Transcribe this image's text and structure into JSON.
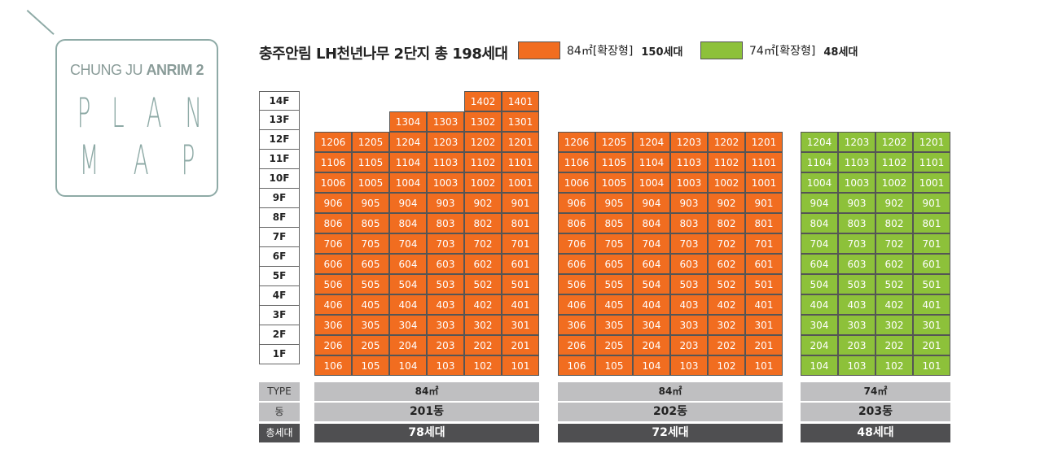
{
  "logo": {
    "line1_light": "CHUNG JU ",
    "line1_bold": "ANRIM 2",
    "word1": [
      "P",
      "L",
      "A",
      "N"
    ],
    "word2": [
      "M",
      "A",
      "P"
    ]
  },
  "title": "충주안림 LH천년나무 2단지 총 198세대",
  "legend": [
    {
      "size": "84㎡[확장형]",
      "count": "150세대",
      "color": "#f16d20"
    },
    {
      "size": "74㎡[확장형]",
      "count": "48세대",
      "color": "#8dc13a"
    }
  ],
  "floors": [
    "14F",
    "13F",
    "12F",
    "11F",
    "10F",
    "9F",
    "8F",
    "7F",
    "6F",
    "5F",
    "4F",
    "3F",
    "2F",
    "1F"
  ],
  "row_labels": {
    "type": "TYPE",
    "dong": "동",
    "total": "총세대"
  },
  "buildings": [
    {
      "id": "201",
      "type": "84㎡",
      "dong": "201동",
      "total": "78세대",
      "color": "orange",
      "units_per_floor": [
        "06",
        "05",
        "04",
        "03",
        "02",
        "01"
      ],
      "top_floors": {
        "13": [
          "04",
          "03",
          "02",
          "01"
        ],
        "14": [
          "02",
          "01"
        ]
      }
    },
    {
      "id": "202",
      "type": "84㎡",
      "dong": "202동",
      "total": "72세대",
      "color": "orange",
      "units_per_floor": [
        "06",
        "05",
        "04",
        "03",
        "02",
        "01"
      ],
      "top_floors": {}
    },
    {
      "id": "203",
      "type": "74㎡",
      "dong": "203동",
      "total": "48세대",
      "color": "green",
      "units_per_floor": [
        "04",
        "03",
        "02",
        "01"
      ],
      "top_floors": {}
    }
  ]
}
